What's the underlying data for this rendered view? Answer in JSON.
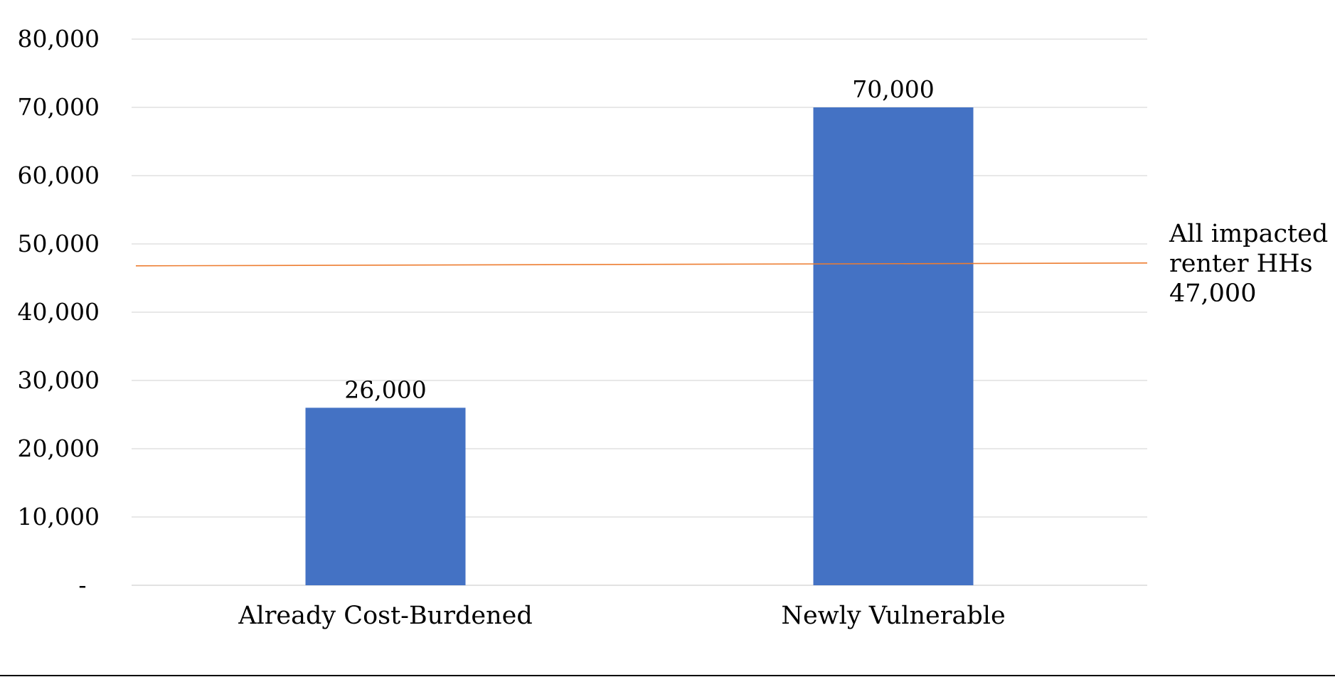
{
  "chart_data": {
    "type": "bar",
    "title": "",
    "xlabel": "",
    "ylabel": "",
    "categories": [
      "Already Cost-Burdened",
      "Newly Vulnerable"
    ],
    "values": [
      26000,
      70000
    ],
    "data_labels": [
      "26,000",
      "70,000"
    ],
    "ylim": [
      0,
      80000
    ],
    "y_ticks": [
      0,
      10000,
      20000,
      30000,
      40000,
      50000,
      60000,
      70000,
      80000
    ],
    "y_tick_labels": [
      "-",
      "10,000",
      "20,000",
      "30,000",
      "40,000",
      "50,000",
      "60,000",
      "70,000",
      "80,000"
    ],
    "grid": true,
    "reference_line": {
      "value": 47000,
      "label_lines": [
        "All impacted",
        "renter HHs",
        "47,000"
      ]
    },
    "colors": {
      "bar": "#4472C4",
      "reference_line": "#ED7D31",
      "grid": "#D9D9D9",
      "axis": "#D9D9D9",
      "bottom_rule": "#000000"
    }
  }
}
